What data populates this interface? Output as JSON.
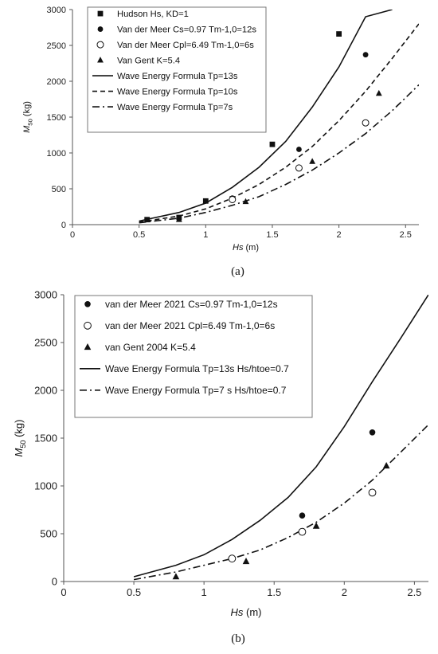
{
  "chart_data": [
    {
      "type": "scatter",
      "panel_label": "(a)",
      "xlabel": "Hs",
      "xlabel_unit": "(m)",
      "ylabel": "M",
      "ylabel_sub": "50",
      "ylabel_unit": "(kg)",
      "xlim": [
        0,
        2.6
      ],
      "ylim": [
        0,
        3000
      ],
      "xticks": [
        "0",
        "0.5",
        "1",
        "1.5",
        "2",
        "2.5"
      ],
      "yticks": [
        "0",
        "500",
        "1000",
        "1500",
        "2000",
        "2500",
        "3000"
      ],
      "grid": false,
      "legend_position": "top-left",
      "series": [
        {
          "name": "Hudson Hs, KD=1",
          "kind": "points",
          "marker": "square",
          "x": [
            0.56,
            0.8,
            1.0,
            1.2,
            1.5,
            2.0
          ],
          "y": [
            70,
            100,
            330,
            360,
            1120,
            2660
          ]
        },
        {
          "name": "Van der Meer Cs=0.97 Tm-1,0=12s",
          "kind": "points",
          "marker": "filled-circle",
          "x": [
            1.2,
            1.7,
            2.2
          ],
          "y": [
            370,
            1050,
            2370
          ]
        },
        {
          "name": "Van der Meer Cpl=6.49 Tm-1,0=6s",
          "kind": "points",
          "marker": "open-circle",
          "x": [
            1.2,
            1.7,
            2.2
          ],
          "y": [
            350,
            790,
            1420
          ]
        },
        {
          "name": "Van Gent K=5.4",
          "kind": "points",
          "marker": "triangle",
          "x": [
            0.8,
            1.3,
            1.8,
            2.3
          ],
          "y": [
            70,
            320,
            880,
            1830
          ]
        },
        {
          "name": "Wave Energy Formula Tp=13s",
          "kind": "line",
          "dash": "solid",
          "x": [
            0.5,
            0.8,
            1.0,
            1.2,
            1.4,
            1.6,
            1.8,
            2.0,
            2.2,
            2.4
          ],
          "y": [
            50,
            170,
            300,
            520,
            800,
            1160,
            1640,
            2200,
            2900,
            3000
          ]
        },
        {
          "name": "Wave Energy Formula Tp=10s",
          "kind": "line",
          "dash": "dashed",
          "x": [
            0.5,
            0.8,
            1.0,
            1.2,
            1.4,
            1.6,
            1.8,
            2.0,
            2.2,
            2.4,
            2.6
          ],
          "y": [
            35,
            120,
            220,
            370,
            560,
            800,
            1090,
            1450,
            1860,
            2320,
            2800
          ]
        },
        {
          "name": "Wave Energy Formula Tp=7s",
          "kind": "line",
          "dash": "dashdot",
          "x": [
            0.5,
            0.8,
            1.0,
            1.2,
            1.4,
            1.6,
            1.8,
            2.0,
            2.2,
            2.4,
            2.6
          ],
          "y": [
            25,
            90,
            170,
            270,
            390,
            560,
            760,
            1000,
            1270,
            1590,
            1950
          ]
        }
      ]
    },
    {
      "type": "scatter",
      "panel_label": "(b)",
      "xlabel": "Hs",
      "xlabel_unit": "(m)",
      "ylabel": "M",
      "ylabel_sub": "50",
      "ylabel_unit": "(kg)",
      "xlim": [
        0,
        2.6
      ],
      "ylim": [
        0,
        3000
      ],
      "xticks": [
        "0",
        "0.5",
        "1",
        "1.5",
        "2",
        "2.5"
      ],
      "yticks": [
        "0",
        "500",
        "1000",
        "1500",
        "2000",
        "2500",
        "3000"
      ],
      "grid": false,
      "legend_position": "top-left",
      "series": [
        {
          "name": "van der Meer 2021 Cs=0.97 Tm-1,0=12s",
          "kind": "points",
          "marker": "filled-circle",
          "x": [
            1.2,
            1.7,
            2.2
          ],
          "y": [
            240,
            690,
            1560
          ]
        },
        {
          "name": "van der Meer 2021 Cpl=6.49 Tm-1,0=6s",
          "kind": "points",
          "marker": "open-circle",
          "x": [
            1.2,
            1.7,
            2.2
          ],
          "y": [
            240,
            520,
            930
          ]
        },
        {
          "name": "van Gent 2004 K=5.4",
          "kind": "points",
          "marker": "triangle",
          "x": [
            0.8,
            1.3,
            1.8,
            2.3
          ],
          "y": [
            50,
            210,
            580,
            1210
          ]
        },
        {
          "name": "Wave Energy Formula Tp=13s Hs/htoe=0.7",
          "kind": "line",
          "dash": "solid",
          "x": [
            0.5,
            0.8,
            1.0,
            1.2,
            1.4,
            1.6,
            1.8,
            2.0,
            2.2,
            2.4,
            2.6
          ],
          "y": [
            50,
            170,
            280,
            440,
            640,
            880,
            1200,
            1620,
            2090,
            2540,
            3000
          ]
        },
        {
          "name": "Wave Energy Formula Tp=7 s  Hs/htoe=0.7",
          "kind": "line",
          "dash": "dashdot",
          "x": [
            0.5,
            0.8,
            1.0,
            1.2,
            1.4,
            1.6,
            1.8,
            2.0,
            2.2,
            2.4,
            2.6
          ],
          "y": [
            20,
            100,
            170,
            240,
            330,
            460,
            620,
            820,
            1060,
            1350,
            1640
          ]
        }
      ]
    }
  ]
}
